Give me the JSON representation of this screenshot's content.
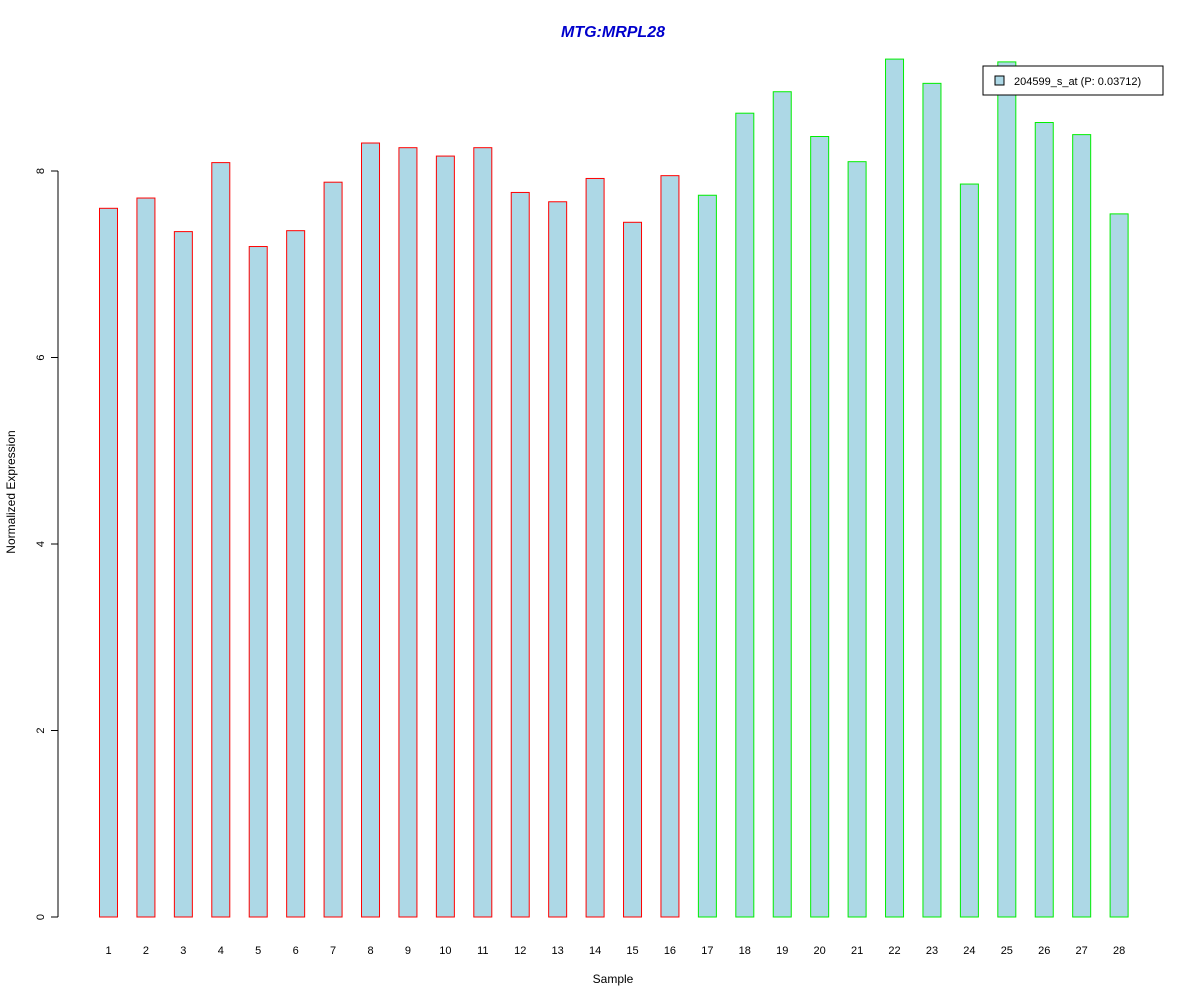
{
  "chart_data": {
    "type": "bar",
    "title": "MTG:MRPL28",
    "xlabel": "Sample",
    "ylabel": "Normalized Expression",
    "ylim": [
      0,
      9.2
    ],
    "yticks": [
      0,
      2,
      4,
      6,
      8
    ],
    "categories": [
      "1",
      "2",
      "3",
      "4",
      "5",
      "6",
      "7",
      "8",
      "9",
      "10",
      "11",
      "12",
      "13",
      "14",
      "15",
      "16",
      "17",
      "18",
      "19",
      "20",
      "21",
      "22",
      "23",
      "24",
      "25",
      "26",
      "27",
      "28"
    ],
    "values": [
      7.6,
      7.71,
      7.35,
      8.09,
      7.19,
      7.36,
      7.88,
      8.3,
      8.25,
      8.16,
      8.25,
      7.77,
      7.67,
      7.92,
      7.45,
      7.95,
      7.74,
      8.62,
      8.85,
      8.37,
      8.1,
      9.2,
      8.94,
      7.86,
      9.17,
      8.52,
      8.39,
      7.54
    ],
    "group_sizes": [
      16,
      12
    ],
    "group_border_colors": [
      "#ff0000",
      "#00ee00"
    ],
    "bar_fill": "#add8e6",
    "title_color": "#0000cc",
    "grid": false,
    "legend": {
      "position": "top-right",
      "entries": [
        {
          "label": "204599_s_at (P: 0.03712)",
          "color": "#add8e6"
        }
      ]
    }
  }
}
